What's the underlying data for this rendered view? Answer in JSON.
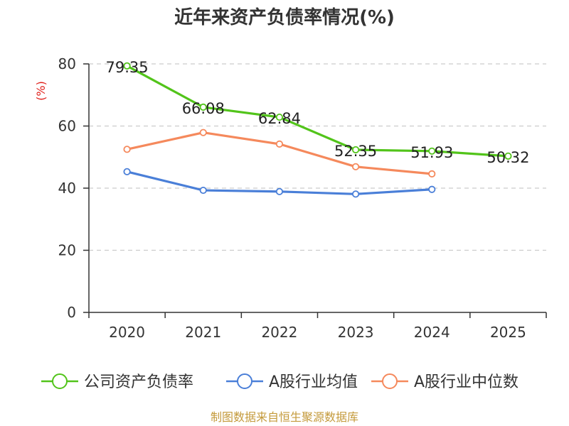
{
  "chart_data": {
    "type": "line",
    "title": "近年来资产负债率情况(%)",
    "ylabel": "(%)",
    "xlabel": "",
    "categories": [
      "2020",
      "2021",
      "2022",
      "2023",
      "2024",
      "2025"
    ],
    "ylim": [
      0,
      80
    ],
    "yticks": [
      0,
      20,
      40,
      60,
      80
    ],
    "grid": true,
    "legend_position": "bottom",
    "series": [
      {
        "name": "公司资产负债率",
        "color": "#52c41a",
        "values": [
          79.35,
          66.08,
          62.84,
          52.35,
          51.93,
          50.32
        ],
        "labels": [
          "79.35",
          "66.08",
          "62.84",
          "52.35",
          "51.93",
          "50.32"
        ]
      },
      {
        "name": "A股行业均值",
        "color": "#4a7fd8",
        "values": [
          45.3,
          39.3,
          38.9,
          38.1,
          39.6,
          null
        ]
      },
      {
        "name": "A股行业中位数",
        "color": "#f5895c",
        "values": [
          52.5,
          57.9,
          54.2,
          46.9,
          44.6,
          null
        ]
      }
    ]
  },
  "colors": {
    "ylabel": "#e0201b",
    "source": "#c49a3b",
    "axis": "#333333",
    "grid": "#cccccc"
  },
  "source": "制图数据来自恒生聚源数据库"
}
